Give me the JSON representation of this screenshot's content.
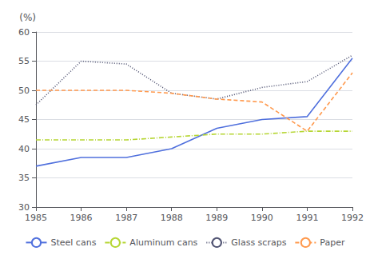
{
  "chart_data": {
    "type": "line",
    "ylabel": "(%)",
    "x": [
      1985,
      1986,
      1987,
      1988,
      1989,
      1990,
      1991,
      1992
    ],
    "xlim": [
      1985,
      1992
    ],
    "xticks": [
      1985,
      1986,
      1987,
      1988,
      1989,
      1990,
      1991,
      1992
    ],
    "ylim": [
      30,
      60
    ],
    "yticks": [
      30,
      35,
      40,
      45,
      50,
      55,
      60
    ],
    "grid": true,
    "legend": "bottom",
    "series": [
      {
        "name": "Steel cans",
        "values": [
          37.0,
          38.5,
          38.5,
          40.0,
          43.5,
          45.0,
          45.5,
          55.5
        ],
        "line_style": "solid"
      },
      {
        "name": "Aluminum cans",
        "values": [
          41.5,
          41.5,
          41.5,
          42.0,
          42.5,
          42.5,
          43.0,
          43.0
        ],
        "line_style": "dashdot"
      },
      {
        "name": "Glass scraps",
        "values": [
          47.5,
          55.0,
          54.5,
          49.5,
          48.5,
          50.5,
          51.5,
          56.0
        ],
        "line_style": "dotted"
      },
      {
        "name": "Paper",
        "values": [
          50.0,
          50.0,
          50.0,
          49.5,
          48.5,
          48.0,
          43.0,
          53.0
        ],
        "line_style": "dashed"
      }
    ]
  }
}
